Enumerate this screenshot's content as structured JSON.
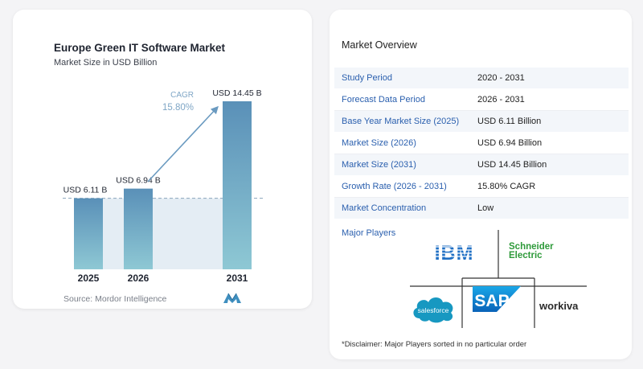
{
  "chart": {
    "title": "Europe Green IT Software Market",
    "subtitle": "Market Size in USD Billion",
    "source": "Source: Mordor Intelligence",
    "cagr_label": "CAGR",
    "cagr_value": "15.80%",
    "colors": {
      "bar_top": "#5a90b8",
      "bar_bottom": "#8ec8d4",
      "shade": "#e4edf4",
      "arrow": "#6a9ac0",
      "cagr_text": "#7fa6c6"
    }
  },
  "chart_data": {
    "type": "bar",
    "categories": [
      "2025",
      "2026",
      "2031"
    ],
    "values": [
      6.11,
      6.94,
      14.45
    ],
    "data_labels": [
      "USD 6.11 B",
      "USD 6.94 B",
      "USD 14.45 B"
    ],
    "title": "Europe Green IT Software Market",
    "subtitle": "Market Size in USD Billion",
    "xlabel": "",
    "ylabel": "",
    "ylim": [
      0,
      14.45
    ],
    "grid": false,
    "annotation": "CAGR 15.80%"
  },
  "overview": {
    "title": "Market Overview",
    "rows": [
      {
        "label": "Study Period",
        "value": "2020 - 2031"
      },
      {
        "label": "Forecast Data Period",
        "value": "2026 - 2031"
      },
      {
        "label": "Base Year Market Size (2025)",
        "value": "USD 6.11 Billion"
      },
      {
        "label": "Market Size (2026)",
        "value": "USD 6.94 Billion"
      },
      {
        "label": "Market Size (2031)",
        "value": "USD 14.45 Billion"
      },
      {
        "label": "Growth Rate (2026 - 2031)",
        "value": "15.80% CAGR"
      },
      {
        "label": "Market Concentration",
        "value": "Low"
      }
    ],
    "major_players_title": "Major Players",
    "players": [
      "IBM",
      "Schneider Electric",
      "salesforce",
      "SAP",
      "workiva"
    ],
    "disclaimer": "*Disclaimer: Major Players sorted in no particular order"
  }
}
